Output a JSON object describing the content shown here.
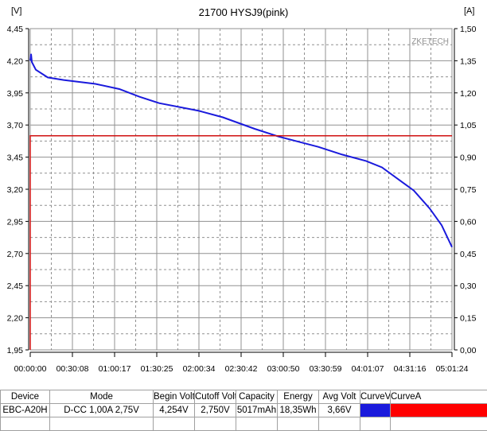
{
  "chart_data": {
    "type": "line",
    "title": "21700 HYSJ9(pink)",
    "ylabel_left": "[V]",
    "ylabel_right": "[A]",
    "watermark": "ZKETECH",
    "ylim_left": [
      1.95,
      4.45
    ],
    "ylim_right": [
      0.0,
      1.5
    ],
    "xlim": [
      "00:00:00",
      "05:01:24"
    ],
    "grid": true,
    "yticks_left": [
      "4,45",
      "4,20",
      "3,95",
      "3,70",
      "3,45",
      "3,20",
      "2,95",
      "2,70",
      "2,45",
      "2,20",
      "1,95"
    ],
    "yticks_right": [
      "1,50",
      "1,35",
      "1,20",
      "1,05",
      "0,90",
      "0,75",
      "0,60",
      "0,45",
      "0,30",
      "0,15",
      "0,00"
    ],
    "xticks": [
      "00:00:00",
      "00:30:08",
      "01:00:17",
      "01:30:25",
      "02:00:34",
      "02:30:42",
      "03:00:50",
      "03:30:59",
      "04:01:07",
      "04:31:16",
      "05:01:24"
    ],
    "series": [
      {
        "axis": "left",
        "color": "#1a1adc",
        "x": [
          "00:00:00",
          "00:00:34",
          "00:01:08",
          "00:03:59",
          "00:12:31",
          "00:23:53",
          "00:46:38",
          "01:03:42",
          "01:17:55",
          "01:32:08",
          "02:00:34",
          "02:17:37",
          "02:40:22",
          "02:57:26",
          "03:25:52",
          "03:42:55",
          "03:59:59",
          "04:11:21",
          "04:22:44",
          "04:34:06",
          "04:45:28",
          "04:54:00",
          "05:01:24"
        ],
        "y": [
          4.2,
          4.254,
          4.19,
          4.13,
          4.07,
          4.05,
          4.02,
          3.98,
          3.92,
          3.87,
          3.81,
          3.76,
          3.67,
          3.61,
          3.53,
          3.47,
          3.42,
          3.37,
          3.28,
          3.19,
          3.05,
          2.92,
          2.75
        ]
      },
      {
        "axis": "right",
        "color": "#d01010",
        "x": [
          "00:00:00",
          "00:00:00",
          "05:01:24"
        ],
        "y": [
          0.0,
          1.0,
          1.0
        ]
      }
    ]
  },
  "table": {
    "headers": [
      "Device",
      "Mode",
      "Begin Volt",
      "Cutoff Volt",
      "Capacity",
      "Energy",
      "Avg Volt",
      "CurveV",
      "CurveA"
    ],
    "row": [
      "EBC-A20H",
      "D-CC 1,00A 2,75V",
      "4,254V",
      "2,750V",
      "5017mAh",
      "18,35Wh",
      "3,66V",
      "",
      ""
    ],
    "curve_colors": [
      "#1a1adc",
      "#ff0000"
    ]
  }
}
